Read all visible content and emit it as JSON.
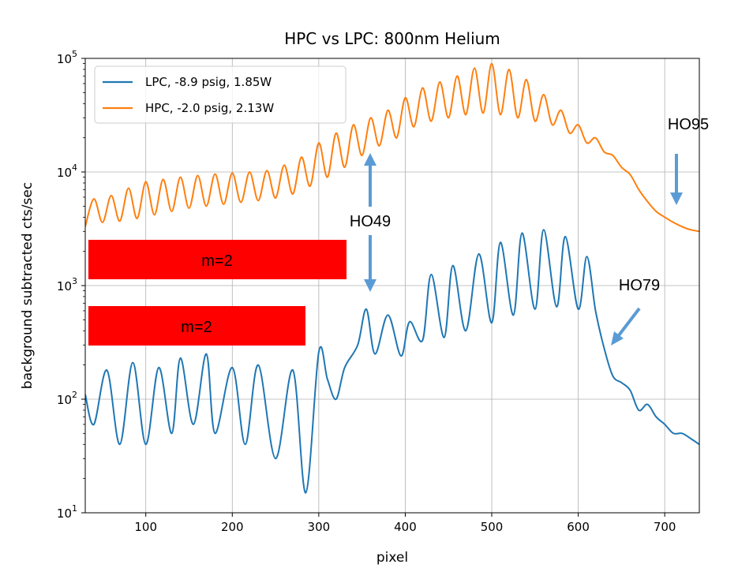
{
  "chart_data": {
    "type": "line",
    "title": "HPC vs LPC: 800nm Helium",
    "xlabel": "pixel",
    "ylabel": "background subtracted cts/sec",
    "xlim": [
      30,
      740
    ],
    "ylim": [
      10,
      100000
    ],
    "yscale": "log",
    "grid": true,
    "legend_position": "top-left",
    "x_ticks": [
      100,
      200,
      300,
      400,
      500,
      600,
      700
    ],
    "y_ticks": [
      {
        "value": 10,
        "base": "10",
        "exp": "1"
      },
      {
        "value": 100,
        "base": "10",
        "exp": "2"
      },
      {
        "value": 1000,
        "base": "10",
        "exp": "3"
      },
      {
        "value": 10000,
        "base": "10",
        "exp": "4"
      },
      {
        "value": 100000,
        "base": "10",
        "exp": "5"
      }
    ],
    "series": [
      {
        "name": "LPC, -8.9 psig, 1.85W",
        "color": "#1f77b4",
        "x": [
          30,
          40,
          55,
          70,
          85,
          100,
          115,
          130,
          140,
          155,
          170,
          180,
          200,
          215,
          230,
          250,
          270,
          285,
          300,
          310,
          320,
          330,
          345,
          355,
          365,
          380,
          395,
          405,
          420,
          430,
          445,
          455,
          470,
          485,
          500,
          510,
          525,
          535,
          550,
          560,
          575,
          585,
          600,
          610,
          620,
          630,
          640,
          650,
          660,
          670,
          680,
          690,
          700,
          710,
          720,
          730,
          740
        ],
        "y": [
          110,
          60,
          180,
          40,
          210,
          40,
          190,
          50,
          230,
          60,
          250,
          50,
          190,
          40,
          200,
          30,
          180,
          15,
          260,
          150,
          100,
          190,
          300,
          620,
          250,
          550,
          240,
          480,
          330,
          1250,
          350,
          1500,
          400,
          1900,
          470,
          2400,
          550,
          2900,
          620,
          3100,
          650,
          2700,
          620,
          1800,
          600,
          280,
          160,
          140,
          120,
          80,
          90,
          70,
          60,
          50,
          50,
          45,
          40
        ]
      },
      {
        "name": "HPC, -2.0 psig, 2.13W",
        "color": "#ff7f0e",
        "x": [
          30,
          40,
          50,
          60,
          70,
          80,
          90,
          100,
          110,
          120,
          130,
          140,
          150,
          160,
          170,
          180,
          190,
          200,
          210,
          220,
          230,
          240,
          250,
          260,
          270,
          280,
          290,
          300,
          310,
          320,
          330,
          340,
          350,
          360,
          370,
          380,
          390,
          400,
          410,
          420,
          430,
          440,
          450,
          460,
          470,
          480,
          490,
          500,
          510,
          520,
          530,
          540,
          550,
          560,
          570,
          580,
          590,
          600,
          610,
          620,
          630,
          640,
          650,
          660,
          670,
          680,
          690,
          700,
          710,
          720,
          730,
          740
        ],
        "y": [
          3300,
          5800,
          3600,
          6200,
          3700,
          7200,
          3900,
          8200,
          4200,
          8600,
          4500,
          9000,
          4800,
          9300,
          5000,
          9600,
          5200,
          9800,
          5400,
          10000,
          5600,
          10300,
          5900,
          11500,
          6400,
          13500,
          7500,
          18000,
          9000,
          22000,
          11000,
          26000,
          14000,
          30000,
          17000,
          35000,
          20000,
          45000,
          25000,
          55000,
          28000,
          62000,
          30000,
          70000,
          32000,
          82000,
          33000,
          90000,
          32000,
          80000,
          30000,
          65000,
          28000,
          48000,
          26000,
          35000,
          22000,
          26000,
          18000,
          20000,
          15000,
          14000,
          11000,
          9500,
          7000,
          5500,
          4500,
          4000,
          3600,
          3300,
          3100,
          3000
        ]
      }
    ],
    "annotations": [
      {
        "text": "HO95"
      },
      {
        "text": "HO49"
      },
      {
        "text": "HO79"
      },
      {
        "text": "m=2"
      },
      {
        "text": "m=2"
      }
    ]
  },
  "annotation_color": "#5b9bd5",
  "box_color": "#ff0000"
}
